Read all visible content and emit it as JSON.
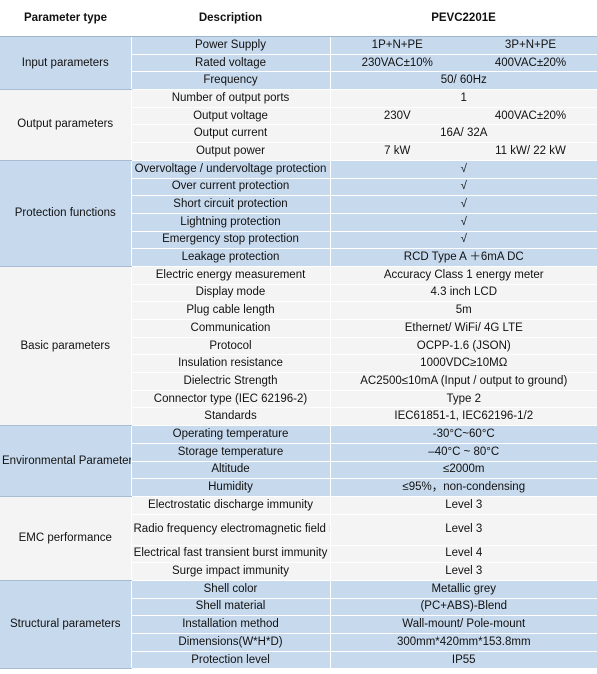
{
  "header": {
    "col1": "Parameter type",
    "col2": "Description",
    "col3": "PEVC2201E"
  },
  "groups": [
    {
      "category": "Input parameters",
      "rows": [
        {
          "desc": "Power Supply",
          "v1": "1P+N+PE",
          "v2": "3P+N+PE"
        },
        {
          "desc": "Rated voltage",
          "v1": "230VAC±10%",
          "v2": "400VAC±20%"
        },
        {
          "desc": "Frequency",
          "value": "50/ 60Hz"
        }
      ]
    },
    {
      "category": "Output parameters",
      "rows": [
        {
          "desc": "Number of output ports",
          "value": "1"
        },
        {
          "desc": "Output voltage",
          "v1": "230V",
          "v2": "400VAC±20%"
        },
        {
          "desc": "Output current",
          "value": "16A/ 32A"
        },
        {
          "desc": "Output power",
          "v1": "7 kW",
          "v2": "11 kW/ 22 kW"
        }
      ]
    },
    {
      "category": "Protection functions",
      "rows": [
        {
          "desc": "Overvoltage / undervoltage protection",
          "value": "√"
        },
        {
          "desc": "Over current protection",
          "value": "√"
        },
        {
          "desc": "Short circuit protection",
          "value": "√"
        },
        {
          "desc": "Lightning protection",
          "value": "√"
        },
        {
          "desc": "Emergency stop protection",
          "value": "√"
        },
        {
          "desc": "Leakage protection",
          "value": "RCD Type A ＋6mA DC"
        }
      ]
    },
    {
      "category": "Basic parameters",
      "rows": [
        {
          "desc": "Electric energy measurement",
          "value": "Accuracy Class 1 energy meter"
        },
        {
          "desc": "Display mode",
          "value": "4.3 inch LCD"
        },
        {
          "desc": "Plug cable length",
          "value": "5m"
        },
        {
          "desc": "Communication",
          "value": "Ethernet/ WiFi/ 4G LTE"
        },
        {
          "desc": "Protocol",
          "value": "OCPP-1.6 (JSON)"
        },
        {
          "desc": "Insulation resistance",
          "value": "1000VDC≥10MΩ"
        },
        {
          "desc": "Dielectric Strength",
          "value": "AC2500≤10mA (Input / output to ground)"
        },
        {
          "desc": "Connector type (IEC 62196-2)",
          "value": "Type 2"
        },
        {
          "desc": "Standards",
          "value": "IEC61851-1, IEC62196-1/2"
        }
      ]
    },
    {
      "category": "Environmental Parameters",
      "rows": [
        {
          "desc": "Operating temperature",
          "value": "-30°C~60°C"
        },
        {
          "desc": "Storage temperature",
          "value": "–40°C ~ 80°C"
        },
        {
          "desc": "Altitude",
          "value": "≤2000m"
        },
        {
          "desc": "Humidity",
          "value": "≤95%，non-condensing"
        }
      ]
    },
    {
      "category": "EMC performance",
      "rows": [
        {
          "desc": "Electrostatic discharge immunity",
          "value": "Level 3"
        },
        {
          "desc": "Radio frequency electromagnetic field radiation immunity",
          "value": "Level 3",
          "tall": true
        },
        {
          "desc": "Electrical fast transient burst immunity",
          "value": "Level 4"
        },
        {
          "desc": "Surge impact immunity",
          "value": "Level 3"
        }
      ]
    },
    {
      "category": "Structural parameters",
      "rows": [
        {
          "desc": "Shell color",
          "value": "Metallic grey"
        },
        {
          "desc": "Shell material",
          "value": "(PC+ABS)-Blend"
        },
        {
          "desc": "Installation method",
          "value": "Wall-mount/ Pole-mount"
        },
        {
          "desc": "Dimensions(W*H*D)",
          "value": "300mm*420mm*153.8mm"
        },
        {
          "desc": "Protection level",
          "value": "IP55"
        }
      ]
    }
  ]
}
